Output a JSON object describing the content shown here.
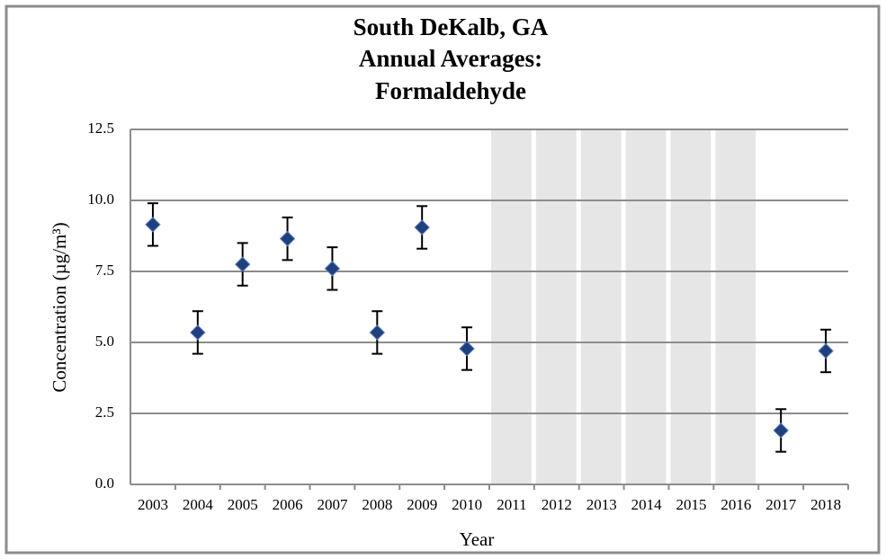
{
  "chart_data": {
    "type": "scatter-errorbar",
    "title": [
      "South DeKalb, GA",
      "Annual Averages:",
      "Formaldehyde"
    ],
    "x_label": "Year",
    "y_label": "Concentration (µg/m³)",
    "categories": [
      "2003",
      "2004",
      "2005",
      "2006",
      "2007",
      "2008",
      "2009",
      "2010",
      "2011",
      "2012",
      "2013",
      "2014",
      "2015",
      "2016",
      "2017",
      "2018"
    ],
    "values": [
      9.15,
      5.35,
      7.75,
      8.65,
      7.6,
      5.35,
      9.05,
      4.78,
      null,
      null,
      null,
      null,
      null,
      null,
      1.9,
      4.7
    ],
    "errors": [
      0.75,
      0.75,
      0.75,
      0.75,
      0.75,
      0.75,
      0.75,
      0.75,
      null,
      null,
      null,
      null,
      null,
      null,
      0.75,
      0.75
    ],
    "color": "#1f3f7f",
    "shade_color": "#e6e6e6",
    "ylim": [
      0,
      12.5
    ],
    "yticks": [
      {
        "value": 0,
        "label": "0.0"
      },
      2.5,
      {
        "value": 5,
        "label": "5.0"
      },
      7.5,
      {
        "value": 10,
        "label": "10.0"
      },
      12.5
    ],
    "grid": true
  }
}
